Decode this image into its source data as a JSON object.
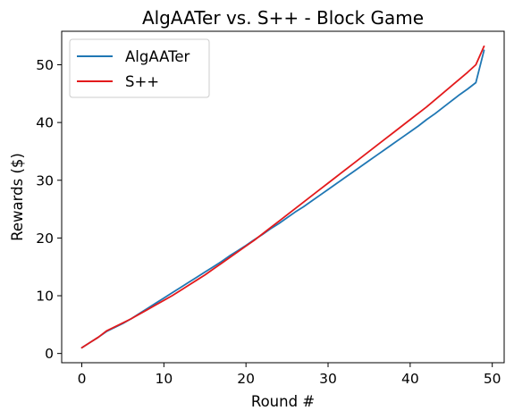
{
  "chart_data": {
    "type": "line",
    "title": "AlgAATer vs. S++ - Block Game",
    "xlabel": "Round #",
    "ylabel": "Rewards ($)",
    "xlim": [
      -2.45,
      51.45
    ],
    "ylim": [
      -1.6,
      55.8
    ],
    "xticks": [
      0,
      10,
      20,
      30,
      40,
      50
    ],
    "yticks": [
      0,
      10,
      20,
      30,
      40,
      50
    ],
    "grid": false,
    "legend_position": "top-left",
    "series": [
      {
        "name": "AlgAATer",
        "color": "#1f77b4",
        "x": [
          0,
          1,
          2,
          3,
          4,
          5,
          6,
          7,
          8,
          9,
          10,
          11,
          12,
          13,
          14,
          15,
          16,
          17,
          18,
          19,
          20,
          21,
          22,
          23,
          24,
          25,
          26,
          27,
          28,
          29,
          30,
          31,
          32,
          33,
          34,
          35,
          36,
          37,
          38,
          39,
          40,
          41,
          42,
          43,
          44,
          45,
          46,
          47,
          48,
          49
        ],
        "y": [
          1.0,
          1.9,
          2.8,
          3.8,
          4.5,
          5.2,
          6.0,
          6.9,
          7.8,
          8.7,
          9.6,
          10.5,
          11.4,
          12.3,
          13.2,
          14.1,
          15.0,
          15.9,
          16.9,
          17.8,
          18.7,
          19.7,
          20.6,
          21.6,
          22.5,
          23.5,
          24.5,
          25.4,
          26.4,
          27.4,
          28.4,
          29.4,
          30.4,
          31.4,
          32.4,
          33.4,
          34.4,
          35.4,
          36.4,
          37.4,
          38.4,
          39.4,
          40.5,
          41.5,
          42.6,
          43.7,
          44.8,
          45.8,
          46.9,
          52.5
        ]
      },
      {
        "name": "S++",
        "color": "#e31a1c",
        "x": [
          0,
          1,
          2,
          3,
          4,
          5,
          6,
          7,
          8,
          9,
          10,
          11,
          12,
          13,
          14,
          15,
          16,
          17,
          18,
          19,
          20,
          21,
          22,
          23,
          24,
          25,
          26,
          27,
          28,
          29,
          30,
          31,
          32,
          33,
          34,
          35,
          36,
          37,
          38,
          39,
          40,
          41,
          42,
          43,
          44,
          45,
          46,
          47,
          48,
          49
        ],
        "y": [
          1.0,
          1.9,
          2.8,
          3.9,
          4.6,
          5.3,
          6.0,
          6.8,
          7.6,
          8.4,
          9.2,
          10.0,
          10.9,
          11.8,
          12.7,
          13.6,
          14.6,
          15.6,
          16.6,
          17.6,
          18.6,
          19.6,
          20.7,
          21.8,
          22.9,
          24.0,
          25.1,
          26.2,
          27.3,
          28.4,
          29.5,
          30.6,
          31.7,
          32.8,
          33.9,
          35.0,
          36.1,
          37.2,
          38.3,
          39.4,
          40.5,
          41.6,
          42.7,
          43.9,
          45.1,
          46.3,
          47.5,
          48.7,
          50.0,
          53.2
        ]
      }
    ]
  }
}
